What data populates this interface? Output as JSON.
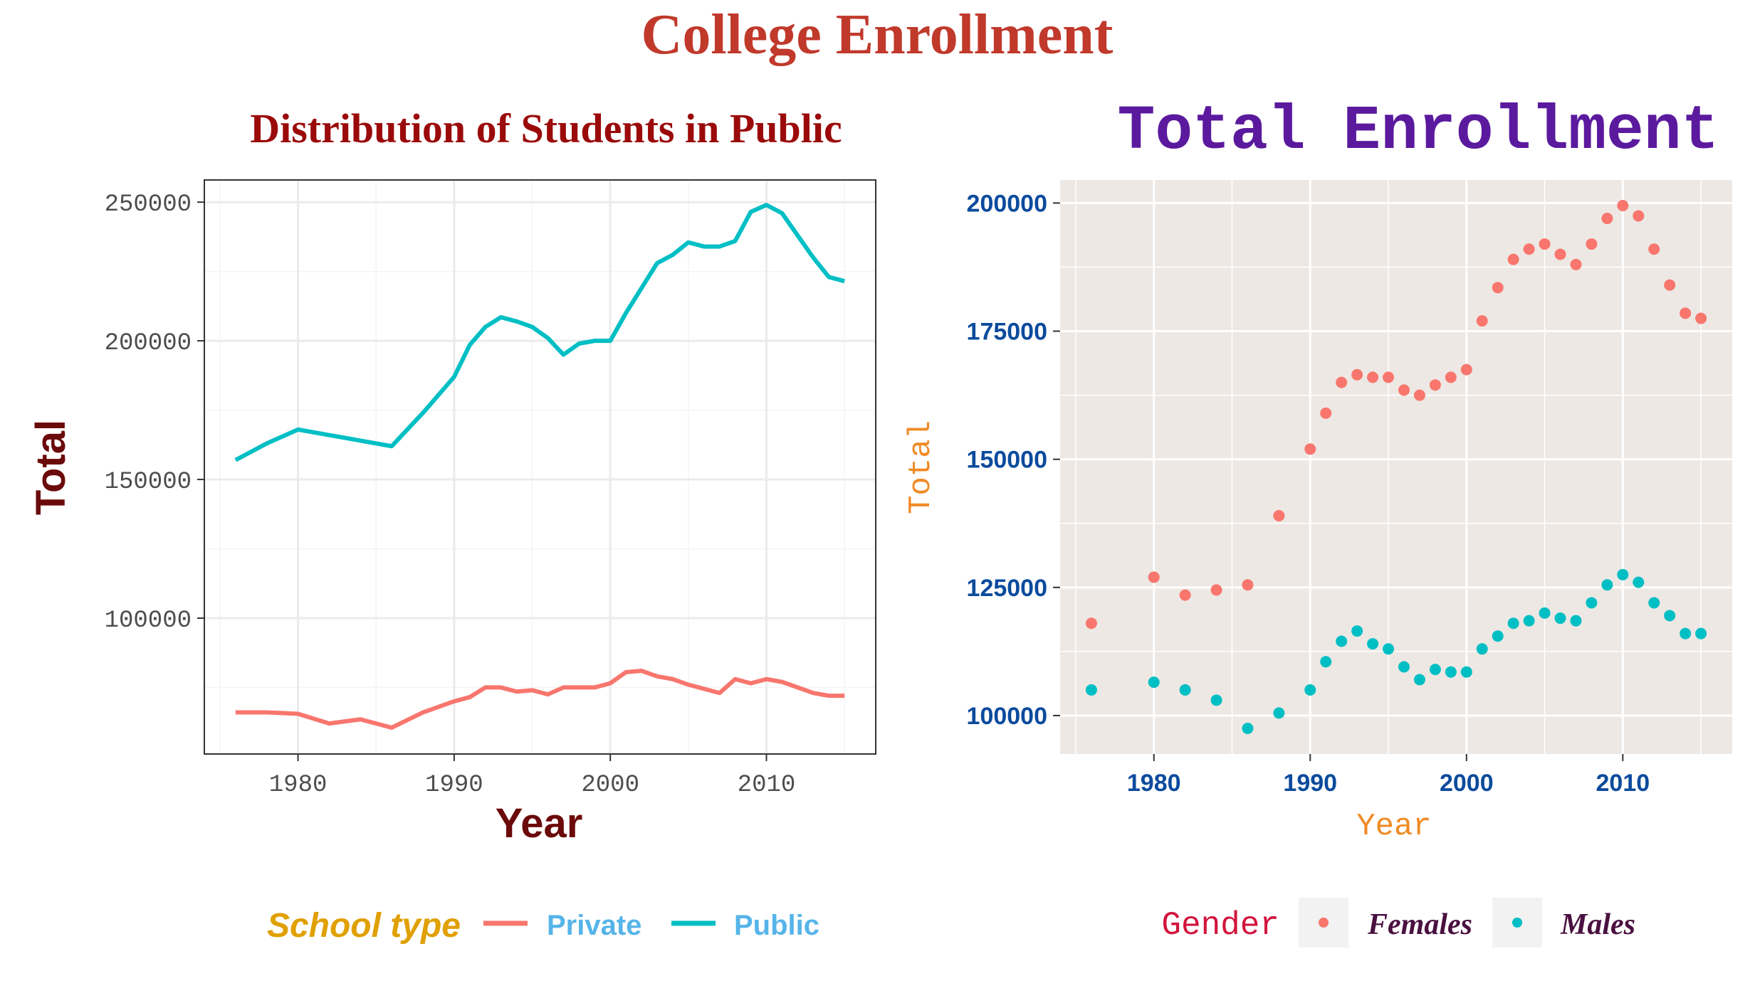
{
  "figure": {
    "title": "College Enrollment",
    "title_color": "#C0392B"
  },
  "chart_data": [
    {
      "type": "line",
      "title": "Distribution of Students in Public",
      "title_color": "#9B0A0A",
      "xlabel": "Year",
      "ylabel": "Total",
      "axis_label_color": "#6B0A0A",
      "tick_color": "#4D4D4D",
      "xlim": [
        1974,
        2017
      ],
      "ylim": [
        51000,
        258000
      ],
      "x_ticks": [
        "1980",
        "1990",
        "2000",
        "2010"
      ],
      "x_tick_values": [
        1980,
        1990,
        2000,
        2010
      ],
      "y_ticks": [
        "100000",
        "150000",
        "200000",
        "250000"
      ],
      "y_tick_values": [
        100000,
        150000,
        200000,
        250000
      ],
      "grid": true,
      "legend": {
        "position": "bottom",
        "title": "School type",
        "title_color": "#E0A000",
        "label_color": "#56B4E9",
        "entries": [
          "Private",
          "Public"
        ]
      },
      "x": [
        1976,
        1978,
        1980,
        1982,
        1984,
        1986,
        1988,
        1990,
        1991,
        1992,
        1993,
        1994,
        1995,
        1996,
        1997,
        1998,
        1999,
        2000,
        2001,
        2002,
        2003,
        2004,
        2005,
        2006,
        2007,
        2008,
        2009,
        2010,
        2011,
        2012,
        2013,
        2014,
        2015
      ],
      "series": [
        {
          "name": "Private",
          "color": "#F8766D",
          "values": [
            66000,
            66000,
            65500,
            62000,
            63500,
            60500,
            66000,
            70000,
            71500,
            75000,
            75000,
            73500,
            74000,
            72500,
            75000,
            75000,
            75000,
            76500,
            80500,
            81000,
            79000,
            78000,
            76000,
            74500,
            73000,
            78000,
            76500,
            78000,
            77000,
            75000,
            73000,
            72000,
            72000
          ]
        },
        {
          "name": "Public",
          "color": "#00BFC4",
          "values": [
            157000,
            163000,
            168000,
            166000,
            164000,
            162000,
            174000,
            187000,
            198500,
            205000,
            208500,
            207000,
            205000,
            201000,
            195000,
            199000,
            200000,
            200000,
            210000,
            219000,
            228000,
            231000,
            235500,
            234000,
            234000,
            236000,
            246500,
            249000,
            246000,
            238000,
            230000,
            223000,
            221500
          ]
        }
      ]
    },
    {
      "type": "scatter",
      "title": "Total Enrollment",
      "title_color": "#5B1A9E",
      "xlabel": "Year",
      "ylabel": "Total",
      "axis_label_color": "#F08A24",
      "tick_color": "#0B4B9C",
      "panel_color": "#EDE8E4",
      "xlim": [
        1974,
        2017
      ],
      "ylim": [
        92500,
        204500
      ],
      "x_ticks": [
        "1980",
        "1990",
        "2000",
        "2010"
      ],
      "x_tick_values": [
        1980,
        1990,
        2000,
        2010
      ],
      "y_ticks": [
        "100000",
        "125000",
        "150000",
        "175000",
        "200000"
      ],
      "y_tick_values": [
        100000,
        125000,
        150000,
        175000,
        200000
      ],
      "grid": true,
      "legend": {
        "position": "bottom",
        "title": "Gender",
        "title_color": "#D2143C",
        "label_color": "#4A1040",
        "entries": [
          "Females",
          "Males"
        ]
      },
      "x": [
        1976,
        1980,
        1982,
        1984,
        1986,
        1988,
        1990,
        1991,
        1992,
        1993,
        1994,
        1995,
        1996,
        1997,
        1998,
        1999,
        2000,
        2001,
        2002,
        2003,
        2004,
        2005,
        2006,
        2007,
        2008,
        2009,
        2010,
        2011,
        2012,
        2013,
        2014,
        2015
      ],
      "series": [
        {
          "name": "Females",
          "color": "#F8766D",
          "values": [
            118000,
            127000,
            123500,
            124500,
            125500,
            139000,
            152000,
            159000,
            165000,
            166500,
            166000,
            166000,
            163500,
            162500,
            164500,
            166000,
            167500,
            177000,
            183500,
            189000,
            191000,
            192000,
            190000,
            188000,
            192000,
            197000,
            199500,
            197500,
            191000,
            184000,
            178500,
            177500
          ]
        },
        {
          "name": "Males",
          "color": "#00BFC4",
          "values": [
            105000,
            106500,
            105000,
            103000,
            97500,
            100500,
            105000,
            110500,
            114500,
            116500,
            114000,
            113000,
            109500,
            107000,
            109000,
            108500,
            108500,
            113000,
            115500,
            118000,
            118500,
            120000,
            119000,
            118500,
            122000,
            125500,
            127500,
            126000,
            122000,
            119500,
            116000,
            116000
          ]
        }
      ]
    }
  ]
}
